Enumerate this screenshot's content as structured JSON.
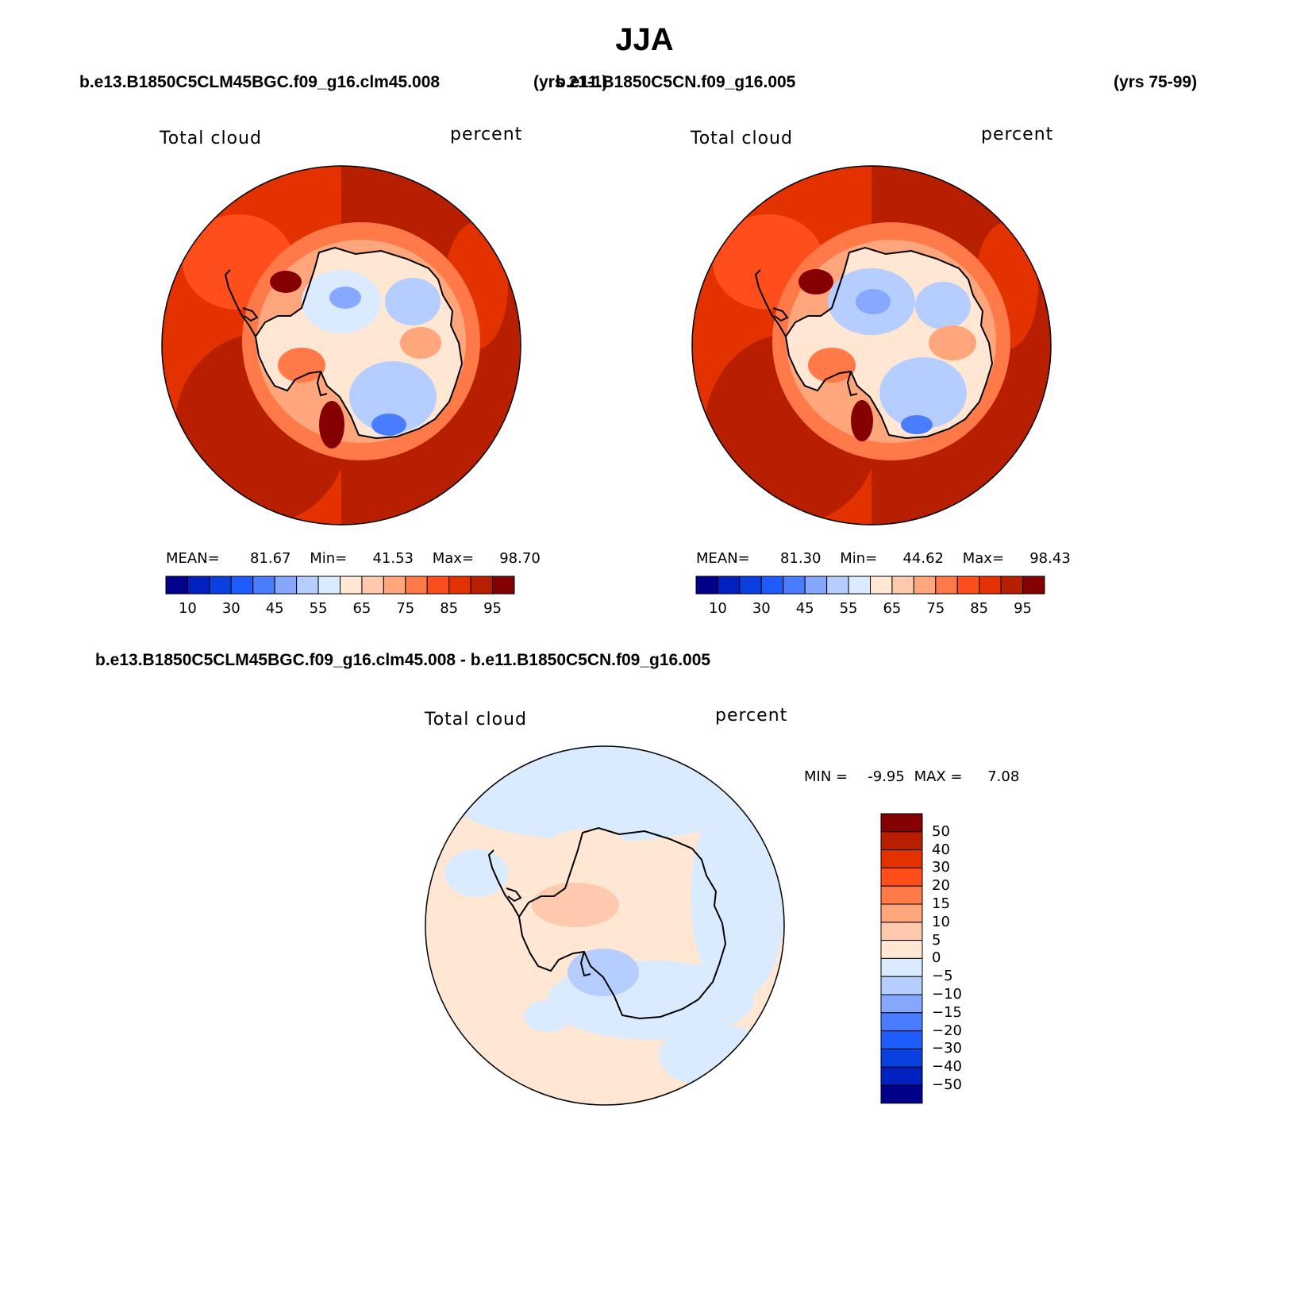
{
  "main_title": "JJA",
  "panels": [
    {
      "case": "b.e13.B1850C5CLM45BGC.f09_g16.clm45.008",
      "years": "(yrs 21-1)",
      "variable": "Total cloud",
      "units": "percent",
      "stats": {
        "mean": "81.67",
        "min": "41.53",
        "max": "98.70"
      }
    },
    {
      "case": "b.e11.B1850C5CN.f09_g16.005",
      "years": "(yrs 75-99)",
      "variable": "Total cloud",
      "units": "percent",
      "stats": {
        "mean": "81.30",
        "min": "44.62",
        "max": "98.43"
      }
    }
  ],
  "diff": {
    "title": "b.e13.B1850C5CLM45BGC.f09_g16.clm45.008 - b.e11.B1850C5CN.f09_g16.005",
    "variable": "Total cloud",
    "units": "percent",
    "stats": {
      "min": "-9.95",
      "max": "7.08"
    }
  },
  "labels": {
    "mean": "MEAN=",
    "min": "Min=",
    "max": "Max=",
    "diff_min": "MIN =",
    "diff_max": "MAX ="
  },
  "colorbar_abs": {
    "colors": [
      "#00008b",
      "#0020c0",
      "#0a3fe0",
      "#1e5cff",
      "#4a7cff",
      "#86a8ff",
      "#b5cdff",
      "#daeaff",
      "#ffe7d4",
      "#ffc9ad",
      "#ffa67c",
      "#ff7a48",
      "#ff4e1c",
      "#e33200",
      "#b81f00",
      "#850000"
    ],
    "tick_labels": [
      "10",
      "30",
      "45",
      "55",
      "65",
      "75",
      "85",
      "95"
    ]
  },
  "colorbar_diff": {
    "colors": [
      "#850000",
      "#b81f00",
      "#e33200",
      "#ff4e1c",
      "#ff7a48",
      "#ffa67c",
      "#ffc9ad",
      "#ffe7d4",
      "#daeaff",
      "#b5cdff",
      "#86a8ff",
      "#4a7cff",
      "#1e5cff",
      "#0a3fe0",
      "#0020c0",
      "#00008b"
    ],
    "tick_labels": [
      "50",
      "40",
      "30",
      "20",
      "15",
      "10",
      "5",
      "0",
      "−5",
      "−10",
      "−15",
      "−20",
      "−30",
      "−40",
      "−50"
    ]
  }
}
